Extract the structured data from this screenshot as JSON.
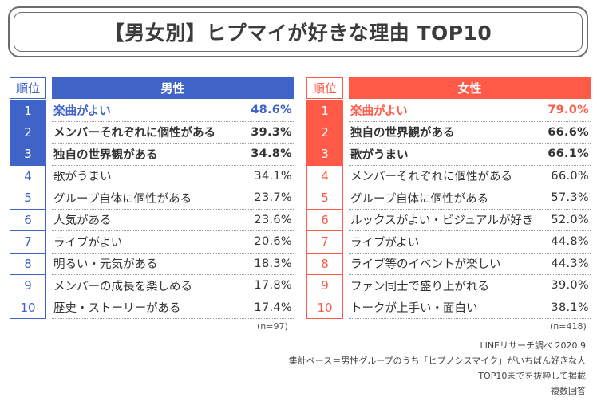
{
  "title": "【男女別】ヒプマイが好きな理由 TOP10",
  "colors": {
    "male_accent": "#3f63c7",
    "female_accent": "#ff5a48",
    "text": "#333333"
  },
  "chart_data": [
    {
      "type": "table",
      "title": "男性",
      "rank_header": "順位",
      "categories": [
        "楽曲がよい",
        "メンバーそれぞれに個性がある",
        "独自の世界観がある",
        "歌がうまい",
        "グループ自体に個性がある",
        "人気がある",
        "ライブがよい",
        "明るい・元気がある",
        "メンバーの成長を楽しめる",
        "歴史・ストーリーがある"
      ],
      "values": [
        48.6,
        39.3,
        34.8,
        34.1,
        23.7,
        23.6,
        20.6,
        18.3,
        17.8,
        17.4
      ],
      "value_labels": [
        "48.6%",
        "39.3%",
        "34.8%",
        "34.1%",
        "23.7%",
        "23.6%",
        "20.6%",
        "18.3%",
        "17.8%",
        "17.4%"
      ],
      "n": "(n=97)"
    },
    {
      "type": "table",
      "title": "女性",
      "rank_header": "順位",
      "categories": [
        "楽曲がよい",
        "独自の世界観がある",
        "歌がうまい",
        "メンバーそれぞれに個性がある",
        "グループ自体に個性がある",
        "ルックスがよい・ビジュアルが好き",
        "ライブがよい",
        "ライブ等のイベントが楽しい",
        "ファン同士で盛り上がれる",
        "トークが上手い・面白い"
      ],
      "values": [
        79.0,
        66.6,
        66.1,
        66.0,
        57.3,
        52.0,
        44.8,
        44.3,
        39.0,
        38.1
      ],
      "value_labels": [
        "79.0%",
        "66.6%",
        "66.1%",
        "66.0%",
        "57.3%",
        "52.0%",
        "44.8%",
        "44.3%",
        "39.0%",
        "38.1%"
      ],
      "n": "(n=418)"
    }
  ],
  "notes": [
    "LINEリサーチ調べ 2020.9",
    "集計ベース＝男性グループのうち「ヒプノシスマイク」がいちばん好きな人",
    "TOP10までを抜粋して掲載",
    "複数回答"
  ]
}
